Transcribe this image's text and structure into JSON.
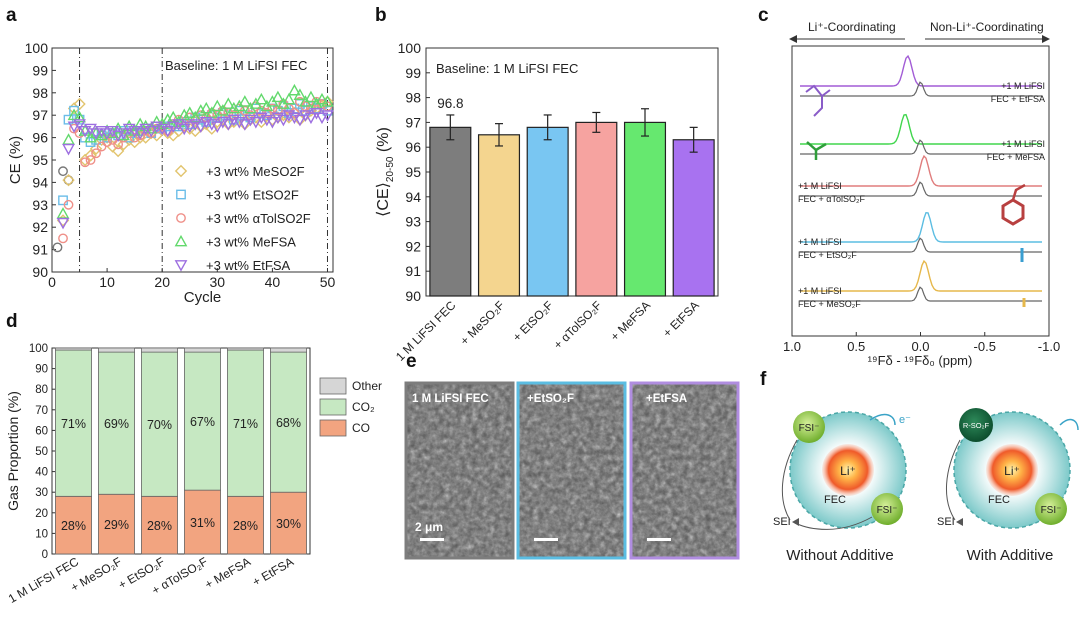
{
  "panels": {
    "a": "a",
    "b": "b",
    "c": "c",
    "d": "d",
    "e": "e",
    "f": "f"
  },
  "chart_data": [
    {
      "id": "a",
      "type": "scatter",
      "xlabel": "Cycle",
      "ylabel": "CE (%)",
      "xlim": [
        0,
        51
      ],
      "ylim": [
        90,
        100
      ],
      "xticks": [
        0,
        10,
        20,
        30,
        40,
        50
      ],
      "yticks": [
        90,
        91,
        92,
        93,
        94,
        95,
        96,
        97,
        98,
        99,
        100
      ],
      "annotation": "Baseline: 1 M LiFSI FEC",
      "vlines": [
        5,
        20,
        50
      ],
      "formation": {
        "x": [
          1,
          2,
          3
        ],
        "y": [
          91.1,
          94.5,
          94.1
        ]
      },
      "series": [
        {
          "name": "+3 wt% MeSO2F",
          "marker": "diamond",
          "color": "#e2c46e",
          "x": [
            2,
            3,
            4,
            5,
            6,
            7,
            8,
            9,
            10,
            11,
            12,
            13,
            14,
            15,
            16,
            17,
            18,
            19,
            20,
            21,
            22,
            23,
            24,
            25,
            26,
            27,
            28,
            29,
            30,
            31,
            32,
            33,
            34,
            35,
            36,
            37,
            38,
            39,
            40,
            41,
            42,
            43,
            44,
            45,
            46,
            47,
            48,
            49,
            50
          ],
          "y": [
            92.3,
            94.1,
            97.3,
            97.5,
            95.0,
            95.2,
            95.5,
            95.9,
            96.0,
            95.6,
            95.4,
            95.7,
            95.9,
            95.8,
            96.0,
            96.0,
            96.2,
            96.1,
            96.5,
            96.2,
            96.1,
            96.3,
            96.5,
            96.4,
            96.3,
            96.5,
            96.6,
            96.4,
            96.7,
            96.8,
            96.6,
            96.7,
            96.9,
            96.6,
            96.8,
            96.9,
            96.7,
            97.0,
            96.8,
            96.9,
            97.0,
            96.9,
            97.1,
            96.8,
            97.0,
            97.2,
            97.3,
            97.4,
            97.6
          ]
        },
        {
          "name": "+3 wt% EtSO2F",
          "marker": "square",
          "color": "#6bbde8",
          "x": [
            2,
            3,
            4,
            5,
            6,
            7,
            8,
            9,
            10,
            11,
            12,
            13,
            14,
            15,
            16,
            17,
            18,
            19,
            20,
            21,
            22,
            23,
            24,
            25,
            26,
            27,
            28,
            29,
            30,
            31,
            32,
            33,
            34,
            35,
            36,
            37,
            38,
            39,
            40,
            41,
            42,
            43,
            44,
            45,
            46,
            47,
            48,
            49,
            50
          ],
          "y": [
            93.2,
            96.8,
            97.2,
            96.8,
            96.0,
            95.8,
            95.9,
            96.1,
            96.0,
            96.2,
            96.1,
            96.3,
            96.0,
            96.2,
            96.3,
            96.4,
            96.2,
            96.5,
            96.4,
            96.5,
            96.6,
            96.5,
            96.7,
            96.6,
            96.9,
            96.8,
            96.7,
            97.0,
            96.9,
            97.1,
            97.0,
            96.8,
            97.2,
            97.0,
            96.9,
            97.3,
            97.1,
            97.0,
            97.3,
            97.2,
            97.4,
            97.1,
            97.3,
            97.5,
            97.2,
            97.4,
            97.3,
            97.5,
            97.2
          ]
        },
        {
          "name": "+3 wt% αTolSO2F",
          "marker": "circle",
          "color": "#ef8f88",
          "x": [
            2,
            3,
            4,
            5,
            6,
            7,
            8,
            9,
            10,
            11,
            12,
            13,
            14,
            15,
            16,
            17,
            18,
            19,
            20,
            21,
            22,
            23,
            24,
            25,
            26,
            27,
            28,
            29,
            30,
            31,
            32,
            33,
            34,
            35,
            36,
            37,
            38,
            39,
            40,
            41,
            42,
            43,
            44,
            45,
            46,
            47,
            48,
            49,
            50
          ],
          "y": [
            91.5,
            93.0,
            96.4,
            96.2,
            94.9,
            95.0,
            95.3,
            95.6,
            95.8,
            95.9,
            95.7,
            96.0,
            96.2,
            96.0,
            96.1,
            96.3,
            96.2,
            96.4,
            96.5,
            96.3,
            96.6,
            96.8,
            96.5,
            96.9,
            96.8,
            97.0,
            96.9,
            97.1,
            97.0,
            97.2,
            97.1,
            97.0,
            97.3,
            97.2,
            97.0,
            97.4,
            97.2,
            97.1,
            97.3,
            97.2,
            97.5,
            97.3,
            97.1,
            97.6,
            97.4,
            97.3,
            97.6,
            97.5,
            97.4
          ]
        },
        {
          "name": "+3 wt% MeFSA",
          "marker": "triangle-up",
          "color": "#62d96c",
          "x": [
            2,
            3,
            4,
            5,
            6,
            7,
            8,
            9,
            10,
            11,
            12,
            13,
            14,
            15,
            16,
            17,
            18,
            19,
            20,
            21,
            22,
            23,
            24,
            25,
            26,
            27,
            28,
            29,
            30,
            31,
            32,
            33,
            34,
            35,
            36,
            37,
            38,
            39,
            40,
            41,
            42,
            43,
            44,
            45,
            46,
            47,
            48,
            49,
            50
          ],
          "y": [
            92.6,
            95.9,
            97.0,
            96.9,
            96.3,
            96.0,
            96.2,
            96.1,
            96.3,
            96.2,
            96.4,
            96.1,
            96.5,
            96.3,
            96.6,
            96.5,
            96.4,
            96.7,
            96.6,
            96.8,
            96.9,
            96.7,
            97.0,
            97.1,
            96.9,
            97.2,
            97.3,
            97.1,
            97.4,
            97.2,
            97.5,
            97.3,
            97.4,
            97.6,
            97.3,
            97.5,
            97.7,
            97.4,
            97.6,
            97.8,
            97.5,
            97.7,
            98.1,
            97.9,
            97.6,
            97.8,
            97.5,
            97.7,
            97.6
          ]
        },
        {
          "name": "+3 wt% EtFSA",
          "marker": "triangle-down",
          "color": "#9d6fe0",
          "x": [
            2,
            3,
            4,
            5,
            6,
            7,
            8,
            9,
            10,
            11,
            12,
            13,
            14,
            15,
            16,
            17,
            18,
            19,
            20,
            21,
            22,
            23,
            24,
            25,
            26,
            27,
            28,
            29,
            30,
            31,
            32,
            33,
            34,
            35,
            36,
            37,
            38,
            39,
            40,
            41,
            42,
            43,
            44,
            45,
            46,
            47,
            48,
            49,
            50
          ],
          "y": [
            92.2,
            95.5,
            96.5,
            96.6,
            96.3,
            96.4,
            96.2,
            96.3,
            96.2,
            96.3,
            96.1,
            96.2,
            96.4,
            96.3,
            96.2,
            96.4,
            96.3,
            96.5,
            96.4,
            96.3,
            96.5,
            96.6,
            96.4,
            96.5,
            96.6,
            96.5,
            96.7,
            96.6,
            96.5,
            96.7,
            96.6,
            96.8,
            96.7,
            96.6,
            96.8,
            96.7,
            96.9,
            96.8,
            96.7,
            96.9,
            96.8,
            97.0,
            96.9,
            96.8,
            97.0,
            96.9,
            97.1,
            96.9,
            97.0
          ]
        }
      ]
    },
    {
      "id": "b",
      "type": "bar",
      "title": "",
      "ylabel": "⟨CE⟩",
      "ylabel_sub": "20-50",
      "ylabel_unit": " (%)",
      "ylim": [
        90,
        100
      ],
      "yticks": [
        90,
        91,
        92,
        93,
        94,
        95,
        96,
        97,
        98,
        99,
        100
      ],
      "annotation": "Baseline: 1 M LiFSI FEC",
      "value_label": "96.8",
      "categories": [
        "1 M LiFSI FEC",
        "+ MeSO₂F",
        "+ EtSO₂F",
        "+ αTolSO₂F",
        "+ MeFSA",
        "+ EtFSA"
      ],
      "values": [
        96.8,
        96.5,
        96.8,
        97.0,
        97.0,
        96.3
      ],
      "errors": [
        0.5,
        0.45,
        0.5,
        0.4,
        0.55,
        0.5
      ],
      "colors": [
        "#7d7d7d",
        "#f4d58f",
        "#79c6f2",
        "#f6a3a0",
        "#66e86f",
        "#a872f0"
      ]
    },
    {
      "id": "c",
      "type": "line",
      "title_left": "Li⁺-Coordinating",
      "title_right": "Non-Li⁺-Coordinating",
      "xlabel": "¹⁹Fδ - ¹⁹Fδ₀ (ppm)",
      "xlim": [
        1.0,
        -1.0
      ],
      "xticks": [
        "1.0",
        "0.5",
        "0.0",
        "-0.5",
        "-1.0"
      ],
      "series": [
        {
          "name": "+1 M LiFSI",
          "color": "#a25cd6",
          "peak_ppm": 0.1
        },
        {
          "name": "FEC + EtFSA",
          "color": "#555555",
          "peak_ppm": 0.0
        },
        {
          "name": "+1 M LiFSI",
          "color": "#40d64d",
          "peak_ppm": 0.12
        },
        {
          "name": "FEC + MeFSA",
          "color": "#555555",
          "peak_ppm": 0.0
        },
        {
          "name": "+1 M LiFSI",
          "color": "#e07d7d",
          "peak_ppm": -0.03
        },
        {
          "name": "FEC + αTolSO₂F",
          "color": "#555555",
          "peak_ppm": 0.0
        },
        {
          "name": "+1 M LiFSI",
          "color": "#5bbde2",
          "peak_ppm": -0.05
        },
        {
          "name": "FEC + EtSO₂F",
          "color": "#555555",
          "peak_ppm": 0.0
        },
        {
          "name": "+1 M LiFSI",
          "color": "#e6b84c",
          "peak_ppm": -0.03
        },
        {
          "name": "FEC + MeSO₂F",
          "color": "#555555",
          "peak_ppm": 0.0
        }
      ]
    },
    {
      "id": "d",
      "type": "bar",
      "stacked": true,
      "ylabel": "Gas Proportion (%)",
      "ylim": [
        0,
        100
      ],
      "yticks": [
        0,
        10,
        20,
        30,
        40,
        50,
        60,
        70,
        80,
        90,
        100
      ],
      "categories": [
        "1 M LiFSI FEC",
        "+ MeSO₂F",
        "+ EtSO₂F",
        "+ αTolSO₂F",
        "+ MeFSA",
        "+ EtFSA"
      ],
      "series": [
        {
          "name": "CO",
          "color": "#f2a480",
          "values": [
            28,
            29,
            28,
            31,
            28,
            30
          ],
          "labels": [
            "28%",
            "29%",
            "28%",
            "31%",
            "28%",
            "30%"
          ]
        },
        {
          "name": "CO₂",
          "color": "#c6e8c2",
          "values": [
            71,
            69,
            70,
            67,
            71,
            68
          ],
          "labels": [
            "71%",
            "69%",
            "70%",
            "67%",
            "71%",
            "68%"
          ]
        },
        {
          "name": "Other",
          "color": "#d6d6d6",
          "values": [
            1,
            2,
            2,
            2,
            1,
            2
          ]
        }
      ],
      "legend": [
        "Other",
        "CO₂",
        "CO"
      ]
    }
  ],
  "sem": {
    "images": [
      {
        "label": "1 M LiFSI FEC",
        "border": "#7d7d7d"
      },
      {
        "label": "+EtSO₂F",
        "border": "#5bbde2"
      },
      {
        "label": "+EtFSA",
        "border": "#b08de0"
      }
    ],
    "scale_bar": "2 μm"
  },
  "schematic": {
    "left_caption": "Without Additive",
    "right_caption": "With Additive",
    "center_ion": "Li⁺",
    "fsi": "FSI⁻",
    "rso2f": "R-SO₂F",
    "fec": "FEC",
    "sei": "SEI",
    "electron": "e⁻"
  }
}
